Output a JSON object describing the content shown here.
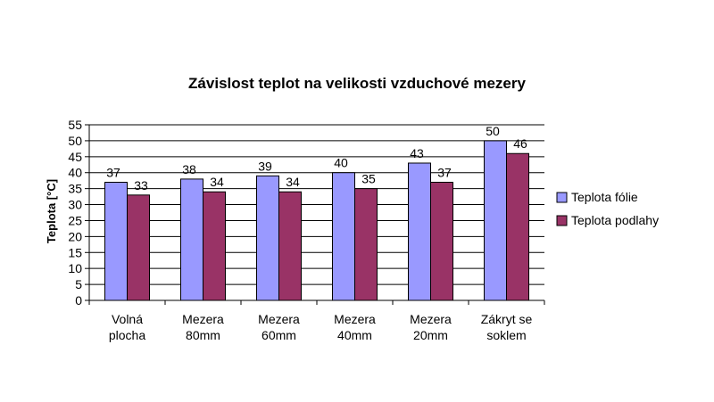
{
  "chart_data": {
    "type": "bar",
    "title": "Závislost teplot na velikosti vzduchové mezery",
    "xlabel": "",
    "ylabel": "Teplota [°C]",
    "ylim": [
      0,
      55
    ],
    "yticks": [
      0,
      5,
      10,
      15,
      20,
      25,
      30,
      35,
      40,
      45,
      50,
      55
    ],
    "grid": true,
    "legend_position": "right",
    "categories": [
      [
        "Volná",
        "plocha"
      ],
      [
        "Mezera",
        "80mm"
      ],
      [
        "Mezera",
        "60mm"
      ],
      [
        "Mezera",
        "40mm"
      ],
      [
        "Mezera",
        "20mm"
      ],
      [
        "Zákryt se",
        "soklem"
      ]
    ],
    "series": [
      {
        "name": "Teplota fólie",
        "color": "#9999ff",
        "values": [
          37,
          38,
          39,
          40,
          43,
          50
        ]
      },
      {
        "name": "Teplota podlahy",
        "color": "#993366",
        "values": [
          33,
          34,
          34,
          35,
          37,
          46
        ]
      }
    ]
  }
}
